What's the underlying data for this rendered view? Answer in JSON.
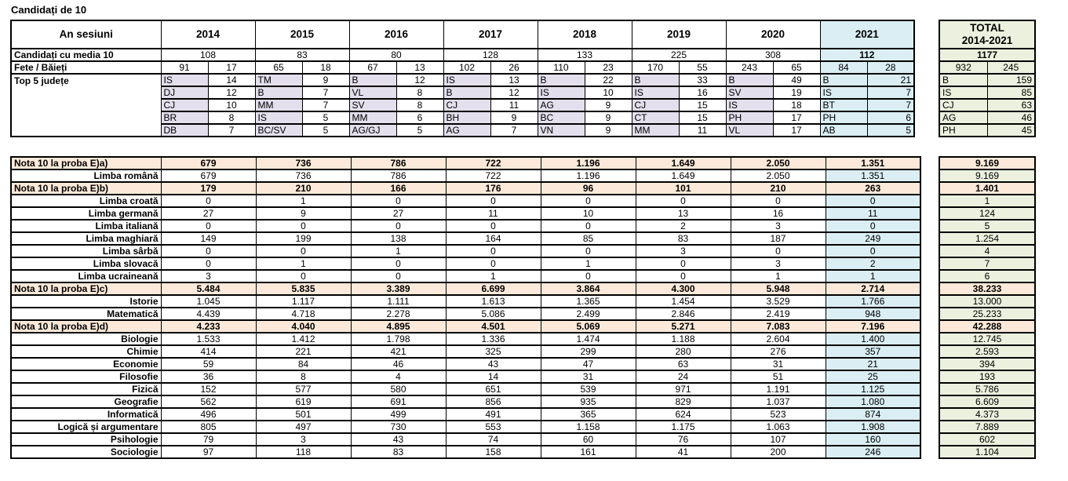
{
  "title": "Candidați de 10",
  "colors": {
    "section_row_bg": "#FDE9D9",
    "year_2021_bg": "#DAEEF3",
    "total_column_bg": "#EBF1DE",
    "county_code_bg": "#E4DFEC",
    "border": "#000000"
  },
  "summary": {
    "corner_label": "An sesiuni",
    "years": [
      "2014",
      "2015",
      "2016",
      "2017",
      "2018",
      "2019",
      "2020",
      "2021"
    ],
    "total_header_line1": "TOTAL",
    "total_header_line2": "2014-2021",
    "rows": {
      "media": {
        "label": "Candidați cu media 10",
        "values": [
          "108",
          "83",
          "80",
          "128",
          "133",
          "225",
          "308",
          "112"
        ],
        "total": "1177"
      },
      "gender": {
        "label": "Fete / Băieți",
        "values": [
          [
            "91",
            "17"
          ],
          [
            "65",
            "18"
          ],
          [
            "67",
            "13"
          ],
          [
            "102",
            "26"
          ],
          [
            "110",
            "23"
          ],
          [
            "170",
            "55"
          ],
          [
            "243",
            "65"
          ],
          [
            "84",
            "28"
          ]
        ],
        "total": [
          "932",
          "245"
        ]
      },
      "top5": {
        "label": "Top 5 județe",
        "by_year": [
          [
            [
              "IS",
              "14"
            ],
            [
              "DJ",
              "12"
            ],
            [
              "CJ",
              "10"
            ],
            [
              "BR",
              "8"
            ],
            [
              "DB",
              "7"
            ]
          ],
          [
            [
              "TM",
              "9"
            ],
            [
              "B",
              "7"
            ],
            [
              "MM",
              "7"
            ],
            [
              "IS",
              "5"
            ],
            [
              "BC/SV",
              "5"
            ]
          ],
          [
            [
              "B",
              "12"
            ],
            [
              "VL",
              "8"
            ],
            [
              "SV",
              "8"
            ],
            [
              "MM",
              "6"
            ],
            [
              "AG/GJ",
              "5"
            ]
          ],
          [
            [
              "IS",
              "13"
            ],
            [
              "B",
              "12"
            ],
            [
              "CJ",
              "11"
            ],
            [
              "BH",
              "9"
            ],
            [
              "AG",
              "7"
            ]
          ],
          [
            [
              "B",
              "22"
            ],
            [
              "IS",
              "10"
            ],
            [
              "AG",
              "9"
            ],
            [
              "BC",
              "9"
            ],
            [
              "VN",
              "9"
            ]
          ],
          [
            [
              "B",
              "33"
            ],
            [
              "IS",
              "16"
            ],
            [
              "CJ",
              "15"
            ],
            [
              "CT",
              "15"
            ],
            [
              "MM",
              "11"
            ]
          ],
          [
            [
              "B",
              "49"
            ],
            [
              "SV",
              "19"
            ],
            [
              "IS",
              "18"
            ],
            [
              "PH",
              "17"
            ],
            [
              "VL",
              "17"
            ]
          ],
          [
            [
              "B",
              "21"
            ],
            [
              "IS",
              "7"
            ],
            [
              "BT",
              "7"
            ],
            [
              "PH",
              "6"
            ],
            [
              "AB",
              "5"
            ]
          ]
        ],
        "total": [
          [
            "B",
            "159"
          ],
          [
            "IS",
            "85"
          ],
          [
            "CJ",
            "63"
          ],
          [
            "AG",
            "46"
          ],
          [
            "PH",
            "45"
          ]
        ]
      }
    }
  },
  "detail": {
    "rows": [
      {
        "label": "Nota 10 la proba E)a)",
        "section": true,
        "values": [
          "679",
          "736",
          "786",
          "722",
          "1.196",
          "1.649",
          "2.050",
          "1.351"
        ],
        "total": "9.169"
      },
      {
        "label": "Limba română",
        "section": false,
        "values": [
          "679",
          "736",
          "786",
          "722",
          "1.196",
          "1.649",
          "2.050",
          "1.351"
        ],
        "total": "9.169"
      },
      {
        "label": "Nota 10 la proba E)b)",
        "section": true,
        "values": [
          "179",
          "210",
          "166",
          "176",
          "96",
          "101",
          "210",
          "263"
        ],
        "total": "1.401"
      },
      {
        "label": "Limba croată",
        "section": false,
        "values": [
          "0",
          "1",
          "0",
          "0",
          "0",
          "0",
          "0",
          "0"
        ],
        "total": "1"
      },
      {
        "label": "Limba germană",
        "section": false,
        "values": [
          "27",
          "9",
          "27",
          "11",
          "10",
          "13",
          "16",
          "11"
        ],
        "total": "124"
      },
      {
        "label": "Limba italiană",
        "section": false,
        "values": [
          "0",
          "0",
          "0",
          "0",
          "0",
          "2",
          "3",
          "0"
        ],
        "total": "5"
      },
      {
        "label": "Limba maghiară",
        "section": false,
        "values": [
          "149",
          "199",
          "138",
          "164",
          "85",
          "83",
          "187",
          "249"
        ],
        "total": "1.254"
      },
      {
        "label": "Limba sârbă",
        "section": false,
        "values": [
          "0",
          "0",
          "1",
          "0",
          "0",
          "3",
          "0",
          "0"
        ],
        "total": "4"
      },
      {
        "label": "Limba slovacă",
        "section": false,
        "values": [
          "0",
          "1",
          "0",
          "0",
          "1",
          "0",
          "3",
          "2"
        ],
        "total": "7"
      },
      {
        "label": "Limba ucraineană",
        "section": false,
        "values": [
          "3",
          "0",
          "0",
          "1",
          "0",
          "0",
          "1",
          "1"
        ],
        "total": "6"
      },
      {
        "label": "Nota 10 la proba E)c)",
        "section": true,
        "values": [
          "5.484",
          "5.835",
          "3.389",
          "6.699",
          "3.864",
          "4.300",
          "5.948",
          "2.714"
        ],
        "total": "38.233"
      },
      {
        "label": "Istorie",
        "section": false,
        "values": [
          "1.045",
          "1.117",
          "1.111",
          "1.613",
          "1.365",
          "1.454",
          "3.529",
          "1.766"
        ],
        "total": "13.000"
      },
      {
        "label": "Matematică",
        "section": false,
        "values": [
          "4.439",
          "4.718",
          "2.278",
          "5.086",
          "2.499",
          "2.846",
          "2.419",
          "948"
        ],
        "total": "25.233"
      },
      {
        "label": "Nota 10 la proba E)d)",
        "section": true,
        "values": [
          "4.233",
          "4.040",
          "4.895",
          "4.501",
          "5.069",
          "5.271",
          "7.083",
          "7.196"
        ],
        "total": "42.288"
      },
      {
        "label": "Biologie",
        "section": false,
        "values": [
          "1.533",
          "1.412",
          "1.798",
          "1.336",
          "1.474",
          "1.188",
          "2.604",
          "1.400"
        ],
        "total": "12.745"
      },
      {
        "label": "Chimie",
        "section": false,
        "values": [
          "414",
          "221",
          "421",
          "325",
          "299",
          "280",
          "276",
          "357"
        ],
        "total": "2.593"
      },
      {
        "label": "Economie",
        "section": false,
        "values": [
          "59",
          "84",
          "46",
          "43",
          "47",
          "63",
          "31",
          "21"
        ],
        "total": "394"
      },
      {
        "label": "Filosofie",
        "section": false,
        "values": [
          "36",
          "8",
          "4",
          "14",
          "31",
          "24",
          "51",
          "25"
        ],
        "total": "193"
      },
      {
        "label": "Fizică",
        "section": false,
        "values": [
          "152",
          "577",
          "580",
          "651",
          "539",
          "971",
          "1.191",
          "1.125"
        ],
        "total": "5.786"
      },
      {
        "label": "Geografie",
        "section": false,
        "values": [
          "562",
          "619",
          "691",
          "856",
          "935",
          "829",
          "1.037",
          "1.080"
        ],
        "total": "6.609"
      },
      {
        "label": "Informatică",
        "section": false,
        "values": [
          "496",
          "501",
          "499",
          "491",
          "365",
          "624",
          "523",
          "874"
        ],
        "total": "4.373"
      },
      {
        "label": "Logică și argumentare",
        "section": false,
        "values": [
          "805",
          "497",
          "730",
          "553",
          "1.158",
          "1.175",
          "1.063",
          "1.908"
        ],
        "total": "7.889"
      },
      {
        "label": "Psihologie",
        "section": false,
        "values": [
          "79",
          "3",
          "43",
          "74",
          "60",
          "76",
          "107",
          "160"
        ],
        "total": "602"
      },
      {
        "label": "Sociologie",
        "section": false,
        "values": [
          "97",
          "118",
          "83",
          "158",
          "161",
          "41",
          "200",
          "246"
        ],
        "total": "1.104"
      }
    ]
  }
}
